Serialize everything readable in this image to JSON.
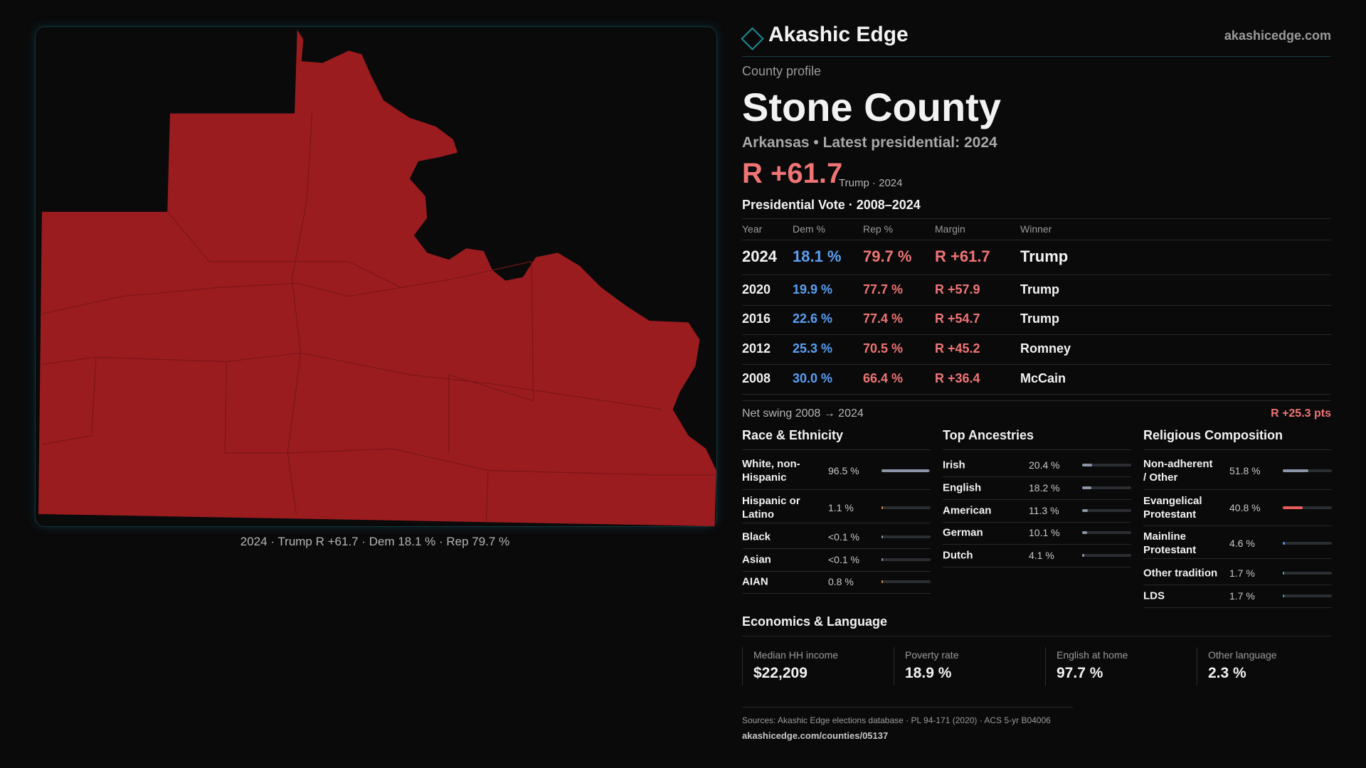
{
  "header": {
    "brand": "Akashic Edge",
    "site": "akashicedge.com"
  },
  "profile": {
    "kicker": "County profile",
    "name": "Stone County",
    "subtitle": "Arkansas • Latest presidential: 2024",
    "margin": "R +61.7",
    "margin_note": "Trump · 2024"
  },
  "map": {
    "caption": "2024 · Trump R +61.7 · Dem 18.1 % · Rep 79.7 %"
  },
  "votes": {
    "title": "Presidential Vote · 2008–2024",
    "columns": [
      "Year",
      "Dem %",
      "Rep %",
      "Margin",
      "Winner"
    ],
    "rows": [
      [
        "2024",
        "18.1 %",
        "79.7 %",
        "R +61.7",
        "Trump"
      ],
      [
        "2020",
        "19.9 %",
        "77.7 %",
        "R +57.9",
        "Trump"
      ],
      [
        "2016",
        "22.6 %",
        "77.4 %",
        "R +54.7",
        "Trump"
      ],
      [
        "2012",
        "25.3 %",
        "70.5 %",
        "R +45.2",
        "Romney"
      ],
      [
        "2008",
        "30.0 %",
        "66.4 %",
        "R +36.4",
        "McCain"
      ]
    ]
  },
  "swing": {
    "label": "Net swing 2008 → 2024",
    "value": "R +25.3 pts"
  },
  "race": {
    "title": "Race & Ethnicity",
    "rows": [
      {
        "label": "White, non-Hispanic",
        "value": 96.5,
        "value_label": "96.5 %",
        "color": "#8c95a8"
      },
      {
        "label": "Hispanic or Latino",
        "value": 1.1,
        "value_label": "1.1 %",
        "color": "#d9823b"
      },
      {
        "label": "Black",
        "value": 0.1,
        "value_label": "<0.1 %",
        "color": "#8c95a8"
      },
      {
        "label": "Asian",
        "value": 0.1,
        "value_label": "<0.1 %",
        "color": "#8c95a8"
      },
      {
        "label": "AIAN",
        "value": 0.8,
        "value_label": "0.8 %",
        "color": "#d9823b"
      }
    ]
  },
  "ancestry": {
    "title": "Top Ancestries",
    "rows": [
      {
        "label": "Irish",
        "value": 20.4,
        "value_label": "20.4 %",
        "color": "#8c95a8"
      },
      {
        "label": "English",
        "value": 18.2,
        "value_label": "18.2 %",
        "color": "#8c95a8"
      },
      {
        "label": "American",
        "value": 11.3,
        "value_label": "11.3 %",
        "color": "#8c95a8"
      },
      {
        "label": "German",
        "value": 10.1,
        "value_label": "10.1 %",
        "color": "#8c95a8"
      },
      {
        "label": "Dutch",
        "value": 4.1,
        "value_label": "4.1 %",
        "color": "#8c95a8"
      }
    ]
  },
  "religion": {
    "title": "Religious Composition",
    "rows": [
      {
        "label": "Non-adherent / Other",
        "value": 51.8,
        "value_label": "51.8 %",
        "color": "#8c95a8"
      },
      {
        "label": "Evangelical Protestant",
        "value": 40.8,
        "value_label": "40.8 %",
        "color": "#e85c5c"
      },
      {
        "label": "Mainline Protestant",
        "value": 4.6,
        "value_label": "4.6 %",
        "color": "#4f8fe0"
      },
      {
        "label": "Other tradition",
        "value": 1.7,
        "value_label": "1.7 %",
        "color": "#3fae9a"
      },
      {
        "label": "LDS",
        "value": 1.7,
        "value_label": "1.7 %",
        "color": "#3fae9a"
      }
    ]
  },
  "economics": {
    "title": "Economics & Language",
    "cards": [
      {
        "label": "Median HH income",
        "value": "$22,209"
      },
      {
        "label": "Poverty rate",
        "value": "18.9 %"
      },
      {
        "label": "English at home",
        "value": "97.7 %"
      },
      {
        "label": "Other language",
        "value": "2.3 %"
      }
    ]
  },
  "footer": {
    "sources": "Sources: Akashic Edge elections database · PL 94-171 (2020) · ACS 5-yr B04006",
    "url": "akashicedge.com/counties/05137"
  }
}
